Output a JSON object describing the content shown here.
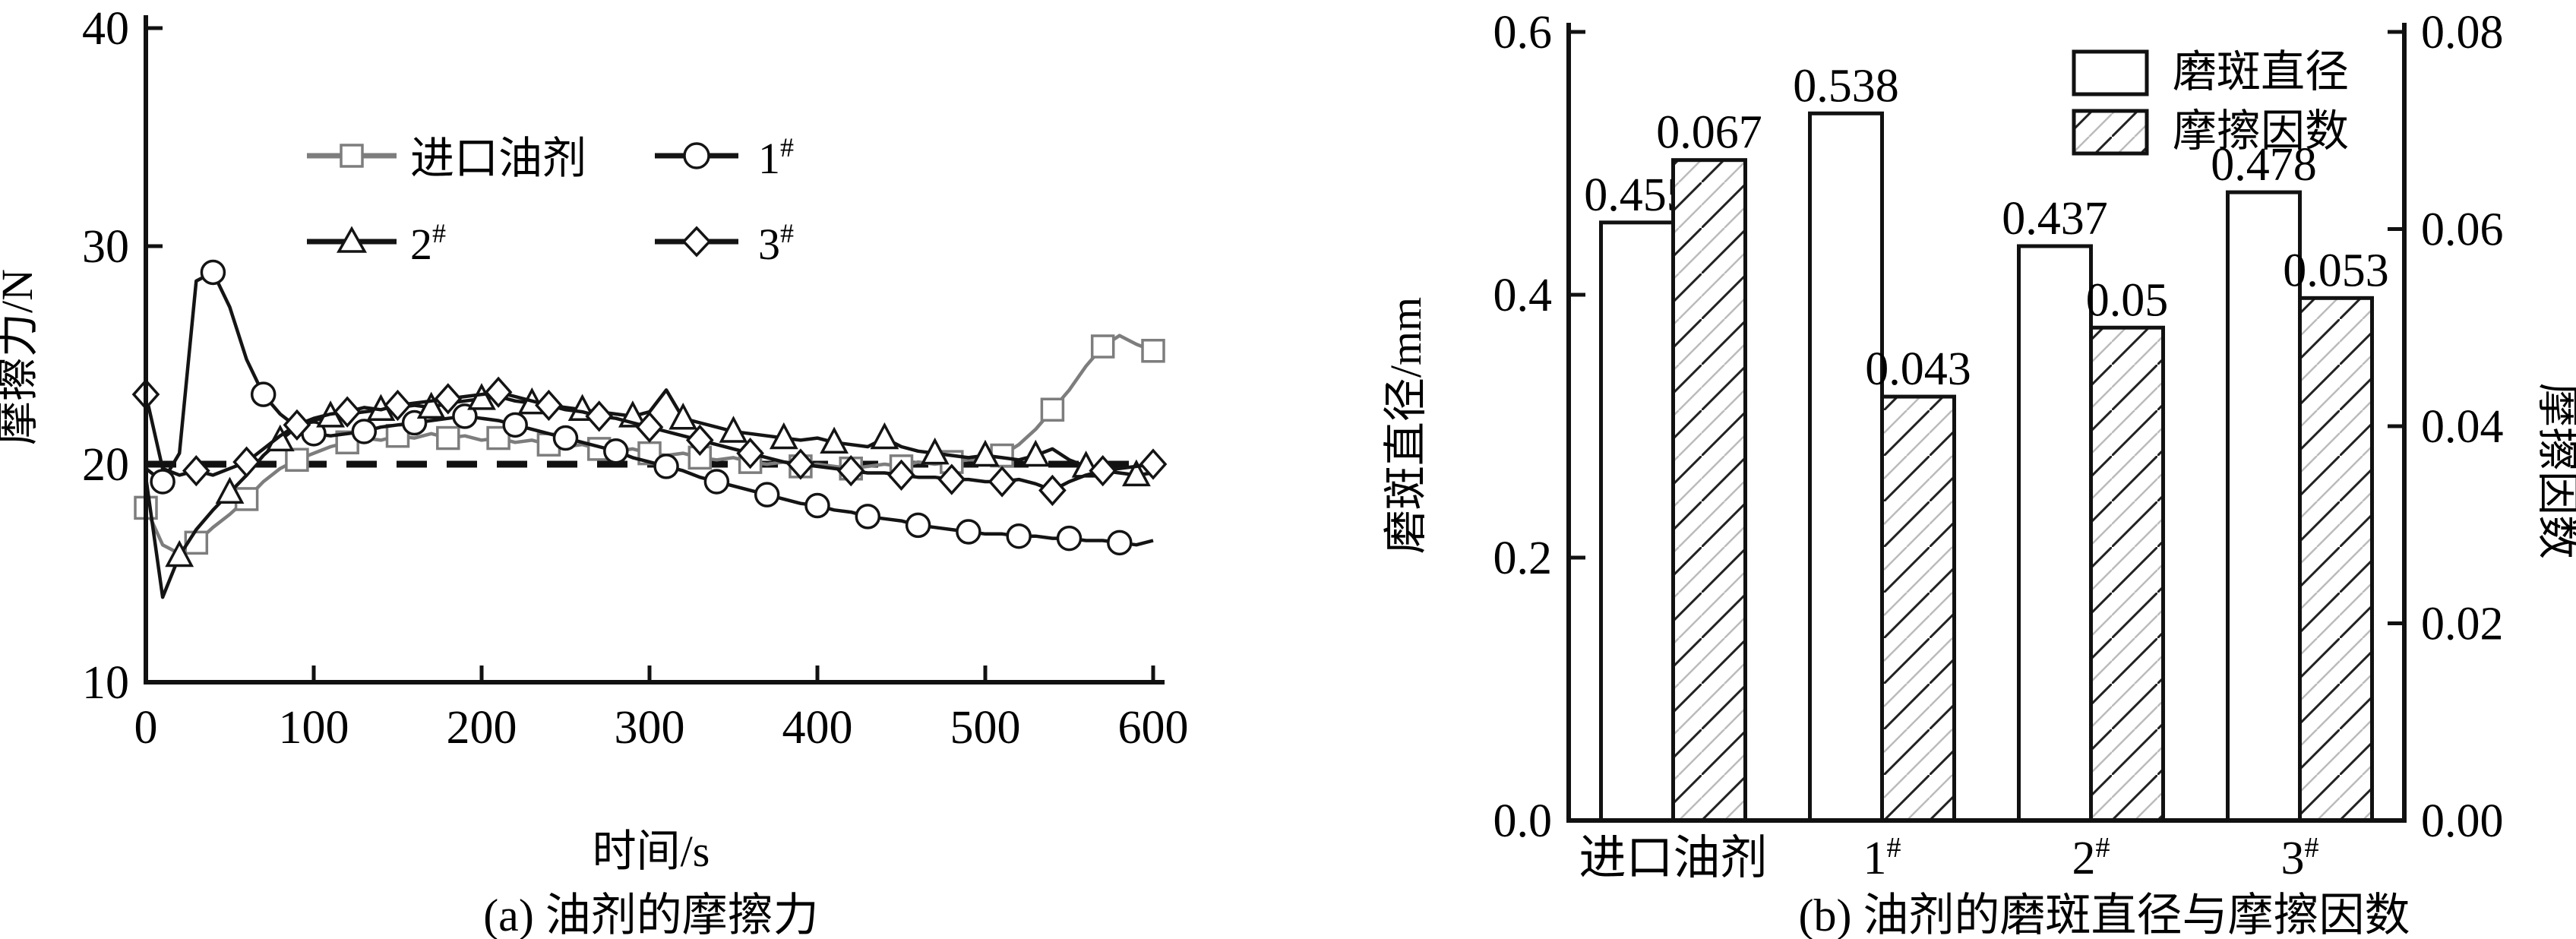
{
  "figure": {
    "panel_a": {
      "caption": "(a) 油剂的摩擦力",
      "xlabel": "时间/s",
      "ylabel": "摩擦力/N",
      "legend": [
        {
          "label": "进口油剂",
          "sup": ""
        },
        {
          "label": "1",
          "sup": "#"
        },
        {
          "label": "2",
          "sup": "#"
        },
        {
          "label": "3",
          "sup": "#"
        }
      ]
    },
    "panel_b": {
      "caption": "(b) 油剂的磨斑直径与摩擦因数",
      "ylabel_left": "磨斑直径/mm",
      "ylabel_right": "摩擦因数",
      "legend": [
        {
          "label": "磨斑直径"
        },
        {
          "label": "摩擦因数"
        }
      ]
    },
    "colors": {
      "black": "#111111",
      "gray": "#7d7d7d",
      "hatch_gray": "#bbbbbb"
    }
  },
  "chart_data": [
    {
      "type": "line",
      "title": "(a) 油剂的摩擦力",
      "xlabel": "时间/s",
      "ylabel": "摩擦力/N",
      "xlim": [
        0,
        600
      ],
      "ylim": [
        10,
        40
      ],
      "xticks": [
        0,
        100,
        200,
        300,
        400,
        500,
        600
      ],
      "yticks": [
        10,
        20,
        30,
        40
      ],
      "refline": {
        "y": 20,
        "style": "dashed"
      },
      "x": [
        0,
        10,
        20,
        30,
        40,
        50,
        60,
        70,
        80,
        90,
        100,
        110,
        120,
        130,
        140,
        150,
        160,
        170,
        180,
        190,
        200,
        210,
        220,
        230,
        240,
        250,
        260,
        270,
        280,
        290,
        300,
        310,
        320,
        330,
        340,
        350,
        360,
        370,
        380,
        390,
        400,
        410,
        420,
        430,
        440,
        450,
        460,
        470,
        480,
        490,
        500,
        510,
        520,
        530,
        540,
        550,
        560,
        570,
        580,
        590,
        600
      ],
      "series": [
        {
          "name": "进口油剂",
          "marker": "square",
          "color": "#7d7d7d",
          "marker_phase": 0,
          "y": [
            18.0,
            16.3,
            15.9,
            16.4,
            17.1,
            17.7,
            18.4,
            19.2,
            19.8,
            20.2,
            20.5,
            20.8,
            21.0,
            21.2,
            21.1,
            21.3,
            21.2,
            21.4,
            21.2,
            21.3,
            21.1,
            21.2,
            21.0,
            21.1,
            20.9,
            20.8,
            20.9,
            20.7,
            20.6,
            20.7,
            20.5,
            20.4,
            20.5,
            20.3,
            20.2,
            20.3,
            20.1,
            20.0,
            20.1,
            19.9,
            20.0,
            19.9,
            19.8,
            19.9,
            20.0,
            19.9,
            20.1,
            20.0,
            20.1,
            20.2,
            20.2,
            20.4,
            20.9,
            21.6,
            22.5,
            23.4,
            24.5,
            25.4,
            25.9,
            25.5,
            25.2
          ]
        },
        {
          "name": "1#",
          "marker": "circle",
          "color": "#141414",
          "marker_phase": 1,
          "y": [
            19.8,
            19.2,
            20.5,
            28.4,
            28.8,
            27.2,
            24.8,
            23.2,
            22.3,
            21.7,
            21.4,
            21.3,
            21.4,
            21.5,
            21.7,
            21.8,
            21.9,
            22.0,
            22.1,
            22.2,
            22.1,
            22.0,
            21.8,
            21.6,
            21.4,
            21.2,
            21.0,
            20.8,
            20.6,
            20.3,
            20.1,
            19.9,
            19.7,
            19.4,
            19.2,
            19.0,
            18.8,
            18.6,
            18.4,
            18.2,
            18.1,
            17.9,
            17.8,
            17.6,
            17.5,
            17.4,
            17.2,
            17.1,
            17.0,
            16.9,
            16.8,
            16.8,
            16.7,
            16.7,
            16.6,
            16.6,
            16.5,
            16.5,
            16.4,
            16.3,
            16.5
          ]
        },
        {
          "name": "2#",
          "marker": "triangle",
          "color": "#141414",
          "marker_phase": 2,
          "y": [
            19.4,
            13.9,
            15.8,
            17.0,
            17.9,
            18.7,
            19.5,
            20.4,
            21.1,
            21.7,
            22.0,
            22.2,
            22.3,
            22.4,
            22.5,
            22.6,
            22.7,
            22.6,
            22.8,
            22.9,
            23.0,
            23.1,
            22.9,
            22.8,
            22.7,
            22.6,
            22.5,
            22.4,
            22.3,
            22.2,
            22.4,
            23.4,
            22.1,
            21.9,
            21.7,
            21.5,
            21.4,
            21.3,
            21.2,
            21.1,
            21.2,
            21.0,
            20.9,
            20.8,
            21.2,
            20.8,
            20.6,
            20.5,
            20.4,
            20.3,
            20.4,
            20.3,
            20.2,
            20.4,
            20.7,
            20.2,
            19.9,
            19.7,
            19.6,
            19.5,
            19.6
          ]
        },
        {
          "name": "3#",
          "marker": "diamond",
          "color": "#141414",
          "marker_phase": 0,
          "y": [
            23.2,
            19.8,
            19.5,
            19.7,
            19.5,
            19.8,
            20.1,
            20.7,
            21.3,
            21.8,
            22.1,
            22.3,
            22.4,
            22.6,
            22.5,
            22.7,
            22.8,
            22.9,
            23.0,
            23.1,
            23.2,
            23.3,
            23.1,
            22.9,
            22.7,
            22.5,
            22.4,
            22.2,
            22.1,
            21.9,
            21.7,
            21.5,
            21.3,
            21.1,
            20.9,
            20.7,
            20.5,
            20.3,
            20.1,
            20.0,
            19.9,
            19.8,
            19.7,
            19.6,
            19.6,
            19.5,
            19.4,
            19.4,
            19.3,
            19.3,
            19.2,
            19.2,
            19.3,
            19.1,
            18.8,
            19.2,
            19.5,
            19.7,
            19.8,
            19.9,
            20.0
          ]
        }
      ]
    },
    {
      "type": "bar",
      "title": "(b) 油剂的磨斑直径与摩擦因数",
      "categories": [
        {
          "label": "进口油剂",
          "sup": ""
        },
        {
          "label": "1",
          "sup": "#"
        },
        {
          "label": "2",
          "sup": "#"
        },
        {
          "label": "3",
          "sup": "#"
        }
      ],
      "series": [
        {
          "name": "磨斑直径",
          "axis": "left",
          "unit": "mm",
          "style": "open",
          "values": [
            "0.455",
            "0.538",
            "0.437",
            "0.478"
          ]
        },
        {
          "name": "摩擦因数",
          "axis": "right",
          "style": "hatched",
          "values": [
            "0.067",
            "0.043",
            "0.05",
            "0.053"
          ]
        }
      ],
      "left_axis": {
        "label": "磨斑直径/mm",
        "min": 0,
        "max": 0.6,
        "ticks": [
          {
            "v": 0,
            "label": "0.0"
          },
          {
            "v": 0.2,
            "label": "0.2"
          },
          {
            "v": 0.4,
            "label": "0.4"
          },
          {
            "v": 0.6,
            "label": "0.6"
          }
        ]
      },
      "right_axis": {
        "label": "摩擦因数",
        "min": 0,
        "max": 0.08,
        "ticks": [
          {
            "v": 0,
            "label": "0.00"
          },
          {
            "v": 0.02,
            "label": "0.02"
          },
          {
            "v": 0.04,
            "label": "0.04"
          },
          {
            "v": 0.06,
            "label": "0.06"
          },
          {
            "v": 0.08,
            "label": "0.08"
          }
        ]
      },
      "legend_position": "top-right",
      "grid": false
    }
  ]
}
